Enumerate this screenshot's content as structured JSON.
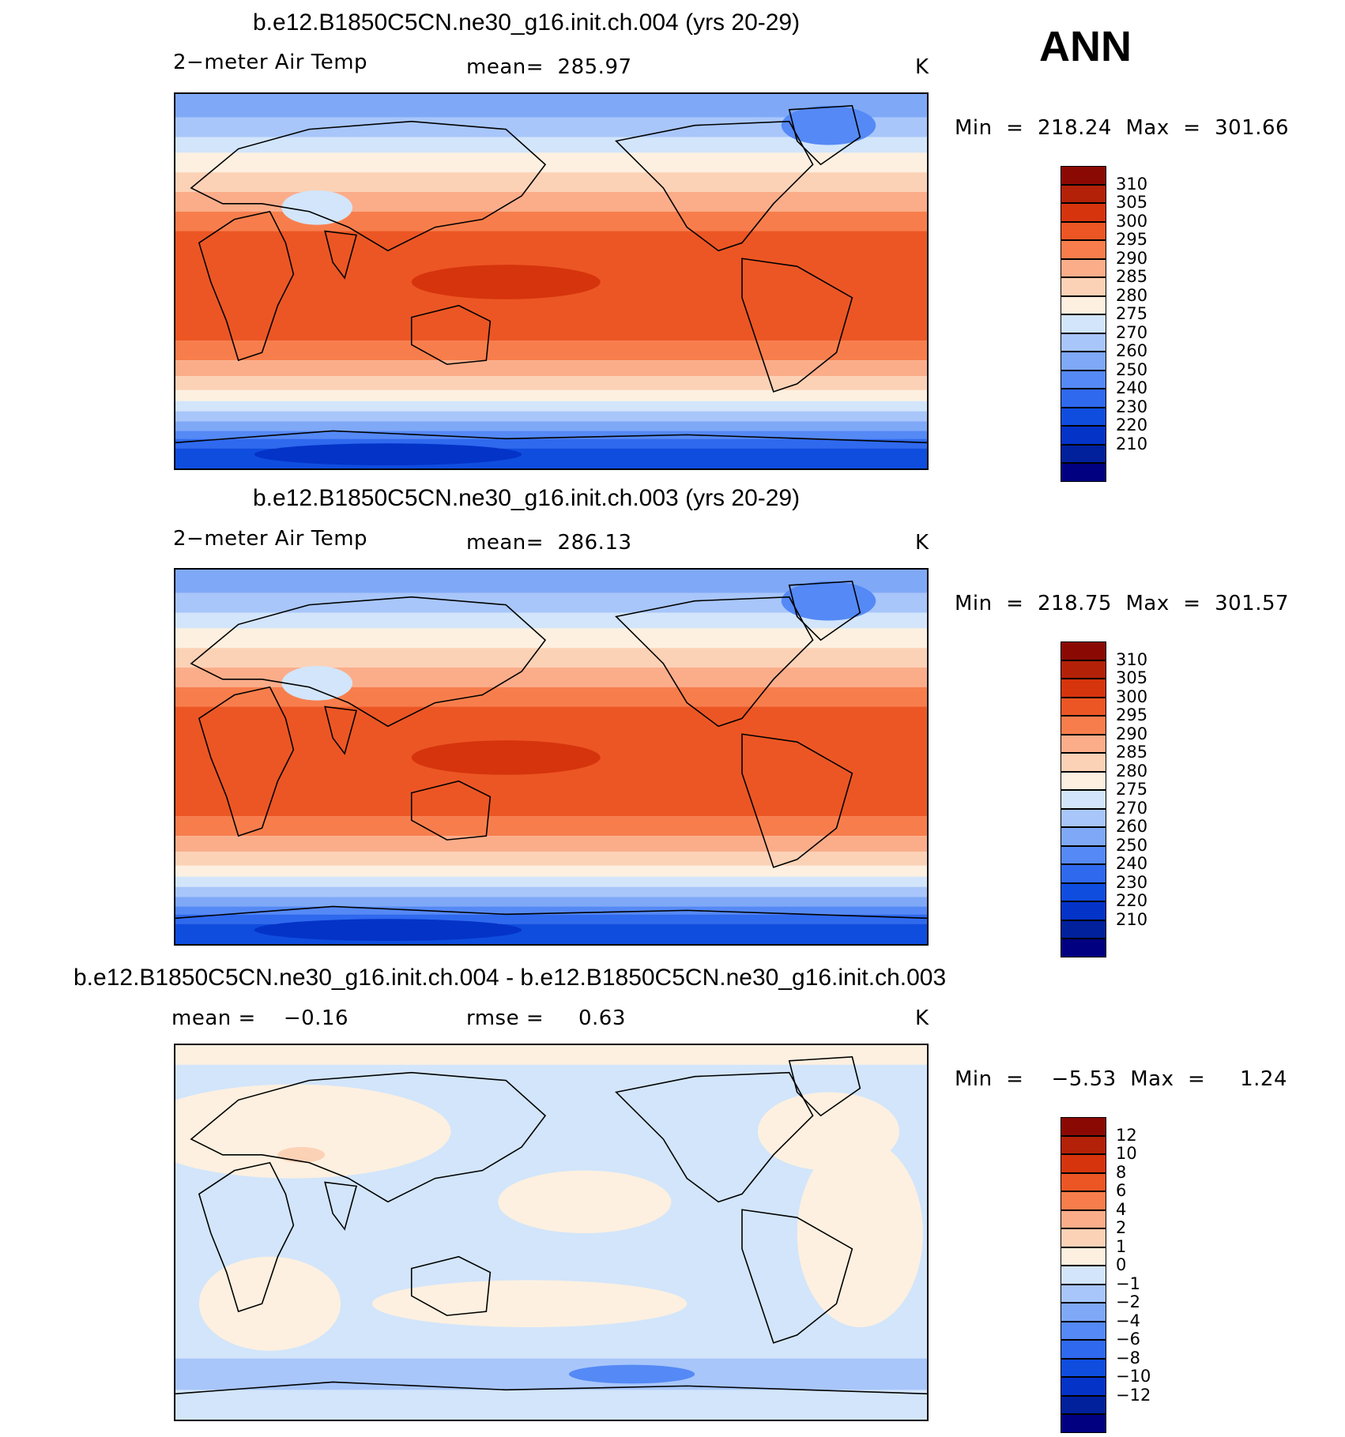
{
  "header": {
    "season": "ANN"
  },
  "panels": [
    {
      "title": "b.e12.B1850C5CN.ne30_g16.init.ch.004 (yrs 20-29)",
      "left_label": "2−meter Air Temp",
      "center_label": "mean=  285.97",
      "unit": "K",
      "minmax": "Min  =  218.24  Max  =  301.66",
      "map_kind": "temperature",
      "legend": {
        "colors": [
          "#000080",
          "#00209c",
          "#0433c8",
          "#0f4ddf",
          "#2f69ee",
          "#5589f5",
          "#7fa8f7",
          "#a8c6fa",
          "#d2e5fa",
          "#fdf0e0",
          "#fcd2b6",
          "#fbad8a",
          "#f77e4c",
          "#ec5624",
          "#d6340d",
          "#b32108",
          "#8a0a03"
        ],
        "ticks": [
          "310",
          "305",
          "300",
          "295",
          "290",
          "285",
          "280",
          "275",
          "270",
          "260",
          "250",
          "240",
          "230",
          "220",
          "210"
        ]
      }
    },
    {
      "title": "b.e12.B1850C5CN.ne30_g16.init.ch.003 (yrs 20-29)",
      "left_label": "2−meter Air Temp",
      "center_label": "mean=  286.13",
      "unit": "K",
      "minmax": "Min  =  218.75  Max  =  301.57",
      "map_kind": "temperature",
      "legend": {
        "colors": [
          "#000080",
          "#00209c",
          "#0433c8",
          "#0f4ddf",
          "#2f69ee",
          "#5589f5",
          "#7fa8f7",
          "#a8c6fa",
          "#d2e5fa",
          "#fdf0e0",
          "#fcd2b6",
          "#fbad8a",
          "#f77e4c",
          "#ec5624",
          "#d6340d",
          "#b32108",
          "#8a0a03"
        ],
        "ticks": [
          "310",
          "305",
          "300",
          "295",
          "290",
          "285",
          "280",
          "275",
          "270",
          "260",
          "250",
          "240",
          "230",
          "220",
          "210"
        ]
      }
    },
    {
      "title": "b.e12.B1850C5CN.ne30_g16.init.ch.004 - b.e12.B1850C5CN.ne30_g16.init.ch.003",
      "left_label": "mean =    −0.16",
      "center_label": "rmse =     0.63",
      "unit": "K",
      "minmax": "Min  =    −5.53  Max  =     1.24",
      "map_kind": "difference",
      "legend": {
        "colors": [
          "#000080",
          "#00209c",
          "#0433c8",
          "#0f4ddf",
          "#2f69ee",
          "#5589f5",
          "#7fa8f7",
          "#a8c6fa",
          "#d2e5fa",
          "#fdf0e0",
          "#fcd2b6",
          "#fbad8a",
          "#f77e4c",
          "#ec5624",
          "#d6340d",
          "#b32108",
          "#8a0a03"
        ],
        "ticks": [
          "12",
          "10",
          "8",
          "6",
          "4",
          "2",
          "1",
          "0",
          "−1",
          "−2",
          "−4",
          "−6",
          "−8",
          "−10",
          "−12"
        ]
      }
    }
  ]
}
